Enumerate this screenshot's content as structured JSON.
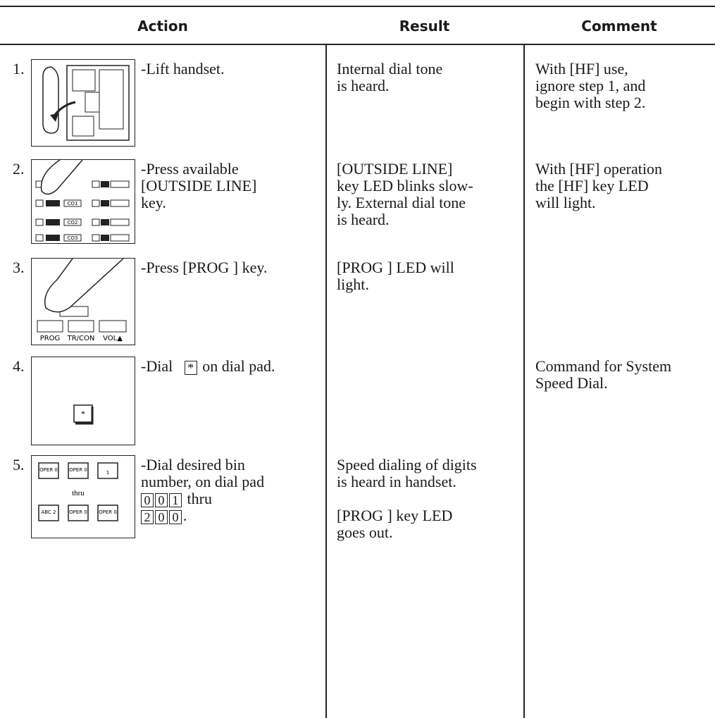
{
  "table": {
    "header": [
      "Action",
      "Result",
      "Comment"
    ],
    "rows": [
      {
        "number": "1.",
        "action": [
          "-Lift handset."
        ],
        "result": [
          "Internal dial tone",
          "is heard."
        ],
        "comment": [
          "With [HF] use,",
          "ignore step 1, and",
          "begin with step 2."
        ]
      },
      {
        "number": "2.",
        "image_labels": [
          "CO1",
          "CO2",
          "CO3"
        ],
        "action": [
          "-Press available",
          "[OUTSIDE LINE]",
          "key."
        ],
        "result": [
          "[OUTSIDE LINE]",
          "key LED blinks slow-",
          "ly. External dial tone",
          "is heard."
        ],
        "comment": [
          "With [HF] operation",
          "the [HF] key LED",
          "will light."
        ]
      },
      {
        "number": "3.",
        "image_labels": [
          "PROG",
          "TR/CON",
          "VOL▲"
        ],
        "action": [
          "-Press [PROG ] key."
        ],
        "result": [
          "[PROG ] LED will",
          "light."
        ]
      },
      {
        "number": "4.",
        "key": "*",
        "action": [
          "-Dial",
          "on dial pad."
        ],
        "comment": [
          "Command for System",
          "Speed Dial."
        ]
      },
      {
        "number": "5.",
        "image_labels": [
          "OPER 0",
          "OPER 0",
          "1",
          "thru",
          "ABC 2",
          "OPER 0",
          "OPER 0"
        ],
        "action": [
          "-Dial desired bin",
          "number, on dial pad",
          "thru",
          "."
        ],
        "keys_from": [
          "0",
          "0",
          "1"
        ],
        "keys_to": [
          "2",
          "0",
          "0"
        ],
        "result": [
          "Speed dialing of digits",
          "is heard in handset.",
          "[PROG ] key LED",
          "goes out."
        ]
      }
    ]
  }
}
